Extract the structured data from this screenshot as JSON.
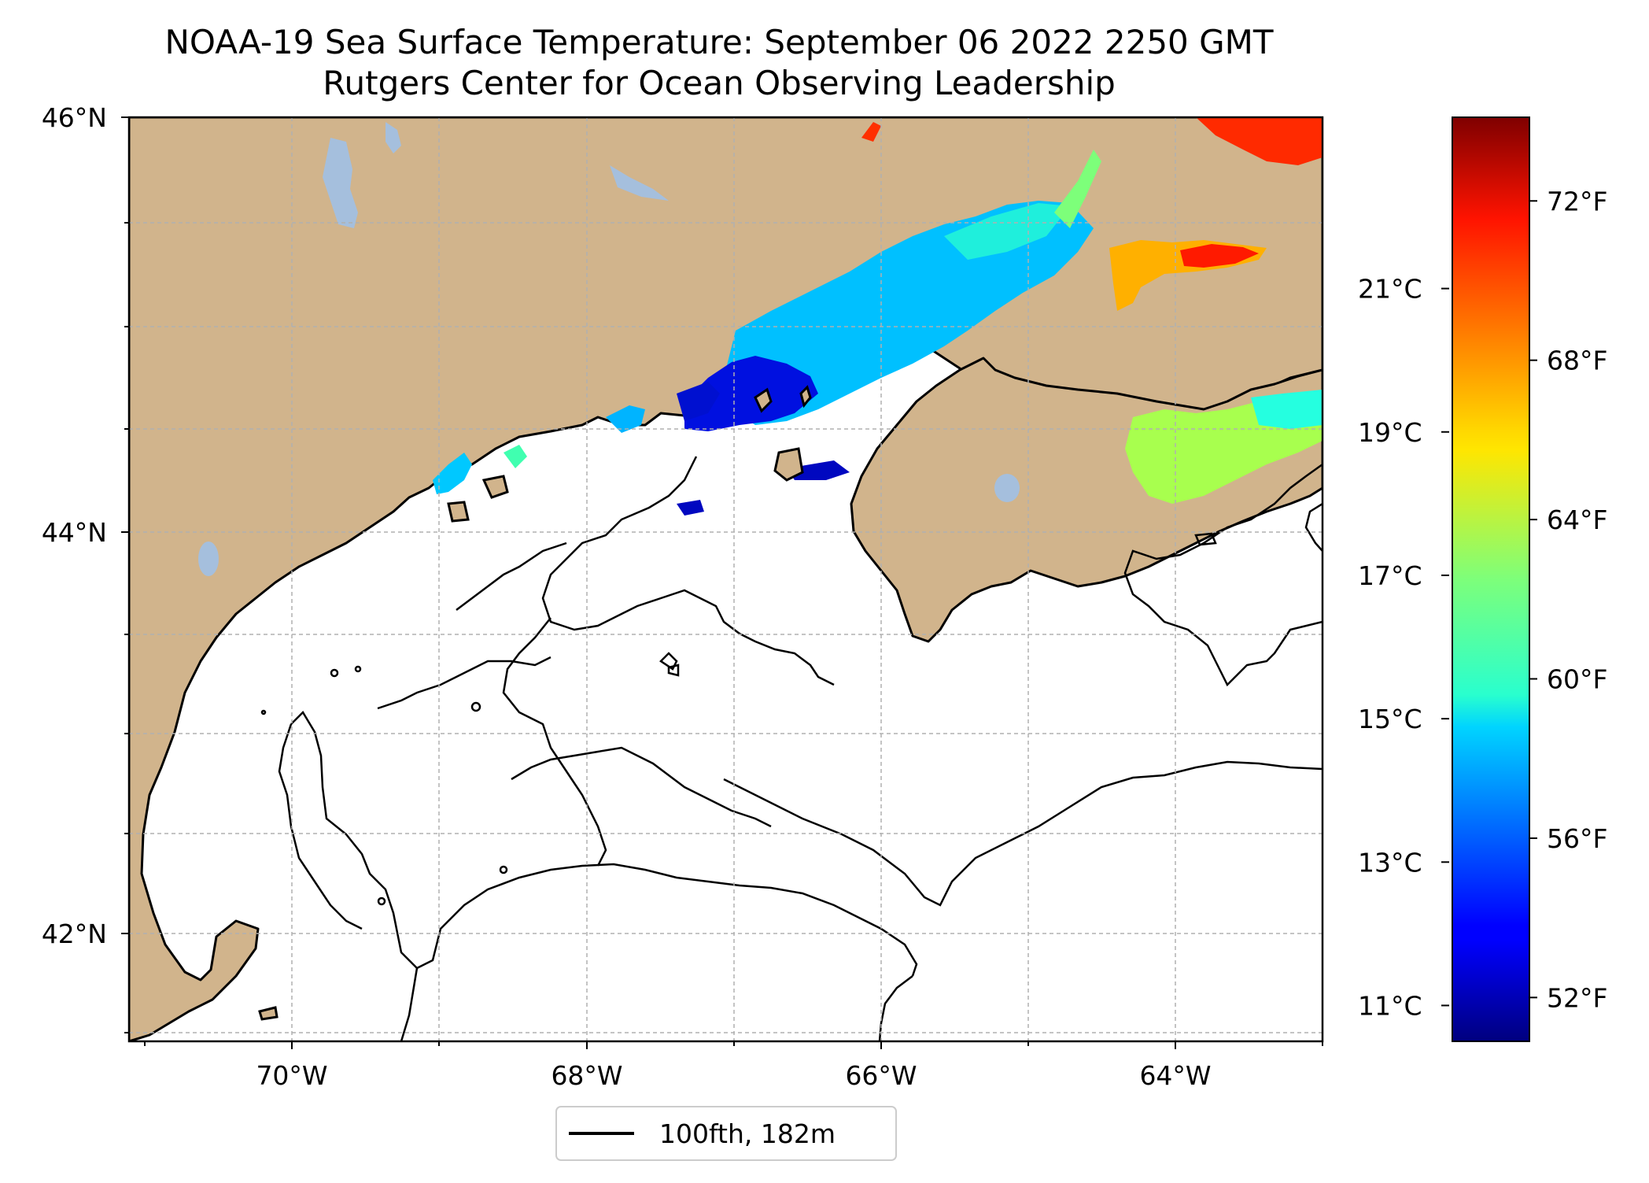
{
  "title": {
    "line1": "NOAA-19 Sea Surface Temperature: September 06 2022 2250 GMT",
    "line2": "Rutgers Center for Ocean Observing Leadership"
  },
  "map": {
    "lon_range": [
      -71.2,
      -63.1
    ],
    "lat_range": [
      41.5,
      46.0
    ],
    "lat_ticks": [
      {
        "value": 46,
        "label": "46°N"
      },
      {
        "value": 44,
        "label": "44°N"
      },
      {
        "value": 42,
        "label": "42°N"
      }
    ],
    "lon_ticks": [
      {
        "value": -70,
        "label": "70°W"
      },
      {
        "value": -68,
        "label": "68°W"
      },
      {
        "value": -66,
        "label": "66°W"
      },
      {
        "value": -64,
        "label": "64°W"
      }
    ],
    "gridlines": "dashed",
    "colors": {
      "land": "#d1b48c",
      "lakes": "#a5bfdd",
      "ocean_no_data": "#ffffff",
      "coastline": "#000000",
      "grid": "#b0b0b0"
    }
  },
  "legend": {
    "label": "100fth, 182m",
    "placement": "bottom-center"
  },
  "colorbar": {
    "colormap": "jet",
    "celsius_ticks": [
      {
        "value": 21,
        "label": "21°C"
      },
      {
        "value": 19,
        "label": "19°C"
      },
      {
        "value": 17,
        "label": "17°C"
      },
      {
        "value": 15,
        "label": "15°C"
      },
      {
        "value": 13,
        "label": "13°C"
      },
      {
        "value": 11,
        "label": "11°C"
      }
    ],
    "fahrenheit_ticks": [
      {
        "value": 72,
        "label": "72°F"
      },
      {
        "value": 68,
        "label": "68°F"
      },
      {
        "value": 64,
        "label": "64°F"
      },
      {
        "value": 60,
        "label": "60°F"
      },
      {
        "value": 56,
        "label": "56°F"
      },
      {
        "value": 52,
        "label": "52°F"
      }
    ],
    "range_f": [
      50.9,
      74.1
    ]
  }
}
